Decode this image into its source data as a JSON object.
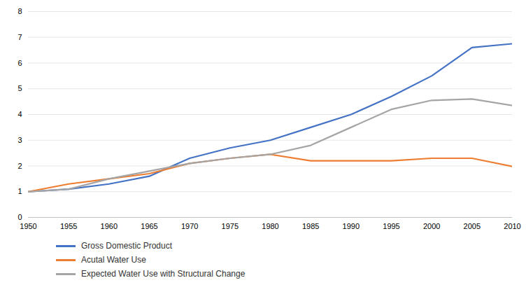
{
  "chart_data": {
    "type": "line",
    "x": [
      1950,
      1955,
      1960,
      1965,
      1970,
      1975,
      1980,
      1985,
      1990,
      1995,
      2000,
      2005,
      2010
    ],
    "series": [
      {
        "name": "Gross Domestic Product",
        "color": "#4472C4",
        "values": [
          1.0,
          1.1,
          1.3,
          1.6,
          2.3,
          2.7,
          3.0,
          3.5,
          4.0,
          4.7,
          5.5,
          6.6,
          6.75
        ]
      },
      {
        "name": "Acutal Water Use",
        "color": "#ED7D31",
        "values": [
          1.0,
          1.3,
          1.5,
          1.7,
          2.1,
          2.3,
          2.45,
          2.2,
          2.2,
          2.2,
          2.3,
          2.3,
          1.98
        ]
      },
      {
        "name": "Expected Water Use with Structural Change",
        "color": "#A5A5A5",
        "values": [
          1.0,
          1.1,
          1.5,
          1.8,
          2.1,
          2.3,
          2.45,
          2.8,
          3.5,
          4.2,
          4.55,
          4.6,
          4.35
        ]
      }
    ],
    "xlim": [
      1950,
      2010
    ],
    "xticks": [
      1950,
      1955,
      1960,
      1965,
      1970,
      1975,
      1980,
      1985,
      1990,
      1995,
      2000,
      2005,
      2010
    ],
    "ylim": [
      0,
      8
    ],
    "yticks": [
      0,
      1,
      2,
      3,
      4,
      5,
      6,
      7,
      8
    ],
    "grid": true,
    "legend": "bottom"
  }
}
